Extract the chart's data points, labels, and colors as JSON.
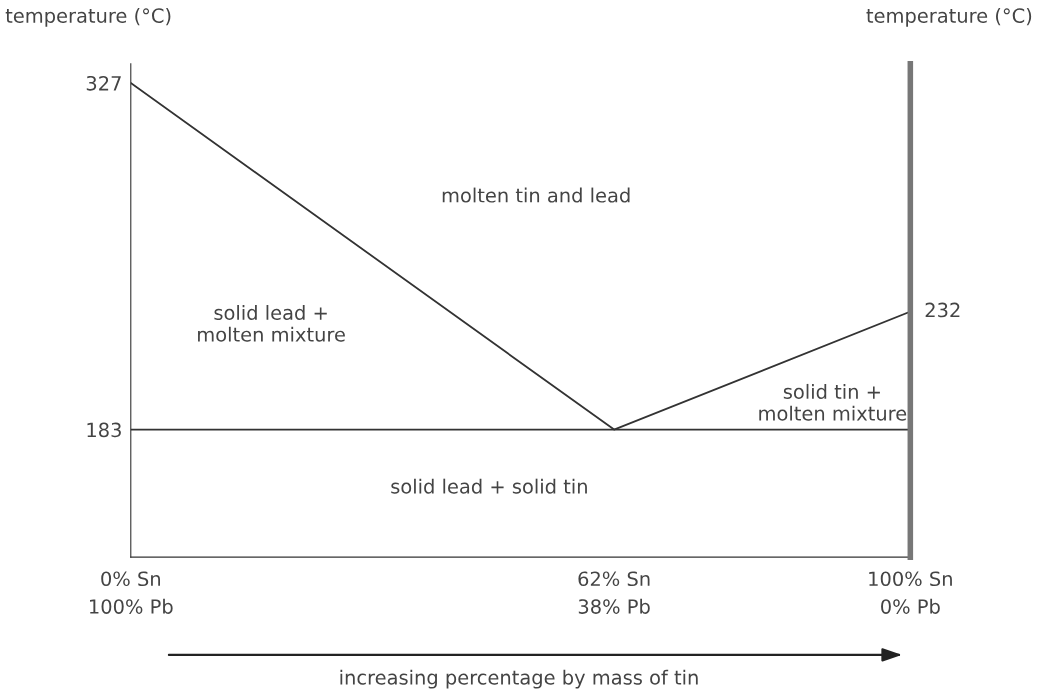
{
  "chart_data": {
    "type": "line",
    "xlabel": "increasing percentage by mass of tin",
    "ylabel": "temperature (°C)",
    "y2label": "temperature (°C)",
    "x": [
      0,
      62,
      100
    ],
    "series": [
      {
        "color": "#333333",
        "values": [
          327,
          183,
          232
        ],
        "value_labels": [
          null,
          null,
          "232"
        ]
      }
    ],
    "xlim": [
      0,
      100
    ],
    "xticks": [
      {
        "value": 0,
        "label": "0% Sn"
      },
      {
        "value": 62,
        "label": "62% Sn"
      },
      {
        "value": 100,
        "label": "100% Sn"
      }
    ],
    "x2lim": [
      100,
      0
    ],
    "x2ticks": [
      {
        "value": 100,
        "label": "100% Pb"
      },
      {
        "value": 38,
        "label": "38% Pb"
      },
      {
        "value": 0,
        "label": "0% Pb"
      }
    ],
    "ylim": [
      130,
      335
    ],
    "yticks": [
      183,
      327
    ],
    "ref_lines": [
      {
        "axis": "y",
        "value": 183,
        "color": "#333333"
      }
    ],
    "annotations": [
      "molten tin and lead",
      "solid lead +\nmolten mixture",
      "solid tin +\nmolten mixture",
      "solid lead + solid tin"
    ],
    "grid": false,
    "legend": false,
    "marker": "none",
    "line_style": "solid"
  }
}
